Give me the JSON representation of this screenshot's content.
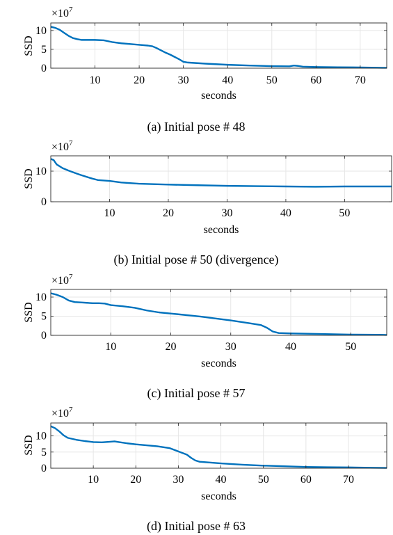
{
  "chart_data": [
    {
      "type": "line",
      "caption": "(a) Initial pose # 48",
      "xlabel": "seconds",
      "ylabel": "SSD",
      "y_multiplier": "×10",
      "y_exponent": "7",
      "xlim": [
        0,
        76
      ],
      "ylim": [
        0,
        12
      ],
      "xticks": [
        10,
        20,
        30,
        40,
        50,
        60,
        70
      ],
      "yticks": [
        0,
        5,
        10
      ],
      "grid": true,
      "series": [
        {
          "color": "#0072BD",
          "x": [
            0,
            1,
            2,
            3,
            4,
            5,
            6,
            7,
            8,
            10,
            12,
            14,
            16,
            18,
            20,
            22,
            23,
            24,
            25,
            26,
            27,
            28,
            29,
            30,
            31,
            35,
            40,
            45,
            50,
            54,
            55,
            56,
            57,
            60,
            65,
            70,
            75,
            76
          ],
          "y": [
            11.0,
            10.7,
            10.2,
            9.4,
            8.6,
            8.0,
            7.7,
            7.5,
            7.5,
            7.5,
            7.4,
            6.9,
            6.6,
            6.4,
            6.2,
            6.0,
            5.8,
            5.3,
            4.7,
            4.1,
            3.6,
            3.0,
            2.4,
            1.7,
            1.5,
            1.2,
            0.9,
            0.7,
            0.55,
            0.5,
            0.7,
            0.6,
            0.4,
            0.3,
            0.25,
            0.2,
            0.1,
            0.1
          ]
        }
      ]
    },
    {
      "type": "line",
      "caption": "(b) Initial pose # 50 (divergence)",
      "xlabel": "seconds",
      "ylabel": "SSD",
      "y_multiplier": "×10",
      "y_exponent": "7",
      "xlim": [
        0,
        58
      ],
      "ylim": [
        0,
        15
      ],
      "xticks": [
        10,
        20,
        30,
        40,
        50
      ],
      "yticks": [
        0,
        10
      ],
      "grid": true,
      "series": [
        {
          "color": "#0072BD",
          "x": [
            0,
            0.5,
            1,
            2,
            3,
            4,
            5,
            6,
            7,
            8,
            10,
            12,
            15,
            20,
            25,
            30,
            35,
            40,
            45,
            50,
            55,
            58
          ],
          "y": [
            14.0,
            13.6,
            12.2,
            11.0,
            10.2,
            9.5,
            8.8,
            8.2,
            7.6,
            7.1,
            6.8,
            6.3,
            5.9,
            5.6,
            5.4,
            5.2,
            5.1,
            5.0,
            4.9,
            5.0,
            5.0,
            5.0
          ]
        }
      ]
    },
    {
      "type": "line",
      "caption": "(c) Initial pose # 57",
      "xlabel": "seconds",
      "ylabel": "SSD",
      "y_multiplier": "×10",
      "y_exponent": "7",
      "xlim": [
        0,
        56
      ],
      "ylim": [
        0,
        12
      ],
      "xticks": [
        10,
        20,
        30,
        40,
        50
      ],
      "yticks": [
        0,
        5,
        10
      ],
      "grid": true,
      "series": [
        {
          "color": "#0072BD",
          "x": [
            0,
            1,
            2,
            3,
            4,
            5,
            6,
            7,
            8,
            9,
            10,
            12,
            14,
            16,
            18,
            20,
            25,
            30,
            33,
            35,
            36,
            37,
            38,
            40,
            45,
            50,
            55,
            56
          ],
          "y": [
            11.0,
            10.6,
            10.0,
            9.1,
            8.7,
            8.6,
            8.5,
            8.4,
            8.4,
            8.3,
            7.9,
            7.6,
            7.2,
            6.5,
            6.0,
            5.7,
            4.9,
            3.9,
            3.2,
            2.7,
            2.0,
            1.0,
            0.6,
            0.5,
            0.35,
            0.2,
            0.15,
            0.1
          ]
        }
      ]
    },
    {
      "type": "line",
      "caption": "(d) Initial pose # 63",
      "xlabel": "seconds",
      "ylabel": "SSD",
      "y_multiplier": "×10",
      "y_exponent": "7",
      "xlim": [
        0,
        79
      ],
      "ylim": [
        0,
        14
      ],
      "xticks": [
        10,
        20,
        30,
        40,
        50,
        60,
        70
      ],
      "yticks": [
        0,
        5,
        10
      ],
      "grid": true,
      "series": [
        {
          "color": "#0072BD",
          "x": [
            0,
            1,
            2,
            3,
            4,
            6,
            8,
            10,
            12,
            14,
            15,
            16,
            18,
            20,
            25,
            28,
            30,
            32,
            33,
            34,
            35,
            40,
            45,
            50,
            55,
            60,
            65,
            70,
            75,
            79
          ],
          "y": [
            13.0,
            12.4,
            11.4,
            10.2,
            9.4,
            8.8,
            8.4,
            8.1,
            8.0,
            8.2,
            8.3,
            8.1,
            7.7,
            7.4,
            6.8,
            6.2,
            5.2,
            4.2,
            3.2,
            2.4,
            2.0,
            1.5,
            1.1,
            0.8,
            0.6,
            0.4,
            0.3,
            0.25,
            0.15,
            0.1
          ]
        }
      ]
    }
  ]
}
